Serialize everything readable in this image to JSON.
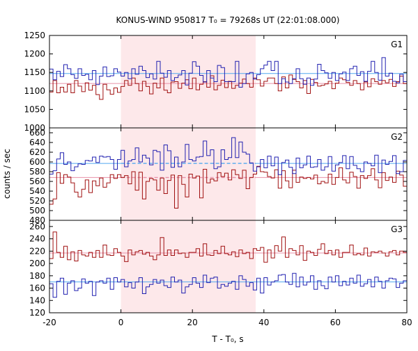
{
  "chart_data": {
    "type": "line",
    "title": "KONUS-WIND 950817 T₀ = 79268s UT (22:01:08.000)",
    "xlabel": "T - T₀, s",
    "ylabel": "counts / sec",
    "xlim": [
      -20,
      80
    ],
    "x_ticks": [
      "-20",
      "0",
      "20",
      "40",
      "60",
      "80"
    ],
    "x_tick_values": [
      -20,
      0,
      20,
      40,
      60,
      80
    ],
    "highlight_interval": [
      0,
      37.7
    ],
    "colors": {
      "red_series": "#a01010",
      "blue_series": "#2020b0",
      "red_background": "#e890a8",
      "blue_background": "#50a8f0",
      "highlight": "#fde8ea"
    },
    "panels": [
      {
        "label": "G1",
        "ylim": [
          1000,
          1250
        ],
        "y_ticks": [
          1000,
          1050,
          1100,
          1150,
          1200,
          1250
        ],
        "red_background_level": 1120,
        "blue_background_level": 1147,
        "red_background_dashed_in_interval": false,
        "blue_background_dashed_in_interval": false,
        "red_values": [
          1097,
          1128,
          1095,
          1110,
          1097,
          1118,
          1095,
          1128,
          1113,
          1098,
          1122,
          1102,
          1115,
          1090,
          1077,
          1118,
          1103,
          1091,
          1108,
          1096,
          1112,
          1128,
          1115,
          1135,
          1120,
          1100,
          1126,
          1112,
          1092,
          1121,
          1108,
          1135,
          1102,
          1095,
          1124,
          1125,
          1107,
          1121,
          1130,
          1106,
          1135,
          1103,
          1118,
          1125,
          1110,
          1141,
          1103,
          1115,
          1129,
          1109,
          1126,
          1107,
          1115,
          1121,
          1132,
          1120,
          1110,
          1135,
          1130,
          1113,
          1126,
          1135,
          1135,
          1120,
          1100,
          1138,
          1108,
          1143,
          1131,
          1125,
          1108,
          1128,
          1093,
          1131,
          1123,
          1113,
          1115,
          1119,
          1126,
          1106,
          1121,
          1135,
          1130,
          1123,
          1115,
          1128,
          1120,
          1103,
          1124,
          1111,
          1133,
          1125,
          1118,
          1128,
          1122,
          1131,
          1112,
          1125,
          1140,
          1120
        ],
        "blue_values": [
          1159,
          1130,
          1153,
          1139,
          1171,
          1160,
          1144,
          1134,
          1160,
          1142,
          1145,
          1130,
          1155,
          1117,
          1140,
          1165,
          1139,
          1141,
          1160,
          1151,
          1140,
          1150,
          1133,
          1160,
          1145,
          1167,
          1155,
          1136,
          1146,
          1132,
          1180,
          1148,
          1137,
          1155,
          1128,
          1136,
          1143,
          1155,
          1116,
          1148,
          1179,
          1167,
          1142,
          1124,
          1155,
          1135,
          1125,
          1169,
          1163,
          1125,
          1125,
          1125,
          1180,
          1110,
          1120,
          1146,
          1150,
          1132,
          1144,
          1160,
          1170,
          1180,
          1155,
          1180,
          1120,
          1133,
          1124,
          1120,
          1133,
          1160,
          1133,
          1118,
          1135,
          1115,
          1132,
          1172,
          1155,
          1149,
          1134,
          1150,
          1128,
          1146,
          1151,
          1128,
          1160,
          1167,
          1142,
          1152,
          1126,
          1153,
          1180,
          1150,
          1129,
          1190,
          1140,
          1148,
          1126,
          1122,
          1145,
          1125
        ]
      },
      {
        "label": "G2",
        "ylim": [
          480,
          670
        ],
        "y_ticks": [
          480,
          500,
          520,
          540,
          560,
          580,
          600,
          620,
          640,
          660
        ],
        "red_background_level": 568,
        "blue_background_level": 597,
        "red_background_dashed_in_interval": true,
        "blue_background_dashed_in_interval": true,
        "red_values": [
          513,
          524,
          578,
          556,
          574,
          569,
          557,
          538,
          528,
          544,
          563,
          537,
          561,
          551,
          567,
          548,
          557,
          574,
          566,
          574,
          568,
          572,
          555,
          580,
          542,
          579,
          524,
          560,
          566,
          563,
          542,
          567,
          535,
          562,
          573,
          505,
          572,
          554,
          528,
          575,
          567,
          571,
          526,
          585,
          557,
          565,
          561,
          578,
          570,
          577,
          563,
          584,
          574,
          566,
          583,
          545,
          568,
          575,
          591,
          580,
          579,
          570,
          567,
          584,
          546,
          582,
          561,
          547,
          583,
          558,
          569,
          566,
          568,
          565,
          573,
          555,
          560,
          557,
          575,
          554,
          568,
          588,
          563,
          557,
          579,
          570,
          546,
          572,
          566,
          572,
          586,
          563,
          547,
          578,
          562,
          569,
          558,
          581,
          573,
          550
        ],
        "blue_values": [
          575,
          582,
          606,
          619,
          595,
          600,
          582,
          590,
          596,
          595,
          603,
          602,
          610,
          599,
          612,
          610,
          611,
          605,
          585,
          605,
          624,
          590,
          602,
          605,
          629,
          600,
          614,
          608,
          594,
          624,
          621,
          583,
          635,
          623,
          589,
          610,
          590,
          600,
          636,
          605,
          602,
          610,
          611,
          643,
          613,
          625,
          586,
          590,
          625,
          605,
          609,
          650,
          609,
          641,
          620,
          616,
          598,
          581,
          590,
          605,
          588,
          612,
          592,
          610,
          574,
          599,
          604,
          589,
          576,
          608,
          588,
          594,
          612,
          589,
          590,
          605,
          583,
          590,
          611,
          581,
          594,
          599,
          613,
          586,
          611,
          593,
          586,
          580,
          600,
          597,
          592,
          614,
          578,
          604,
          595,
          601,
          613,
          576,
          580,
          603
        ]
      },
      {
        "label": "G3",
        "ylim": [
          120,
          270
        ],
        "y_ticks": [
          120,
          140,
          160,
          180,
          200,
          220,
          240,
          260
        ],
        "red_background_level": 217,
        "blue_background_level": 170,
        "red_background_dashed_in_interval": false,
        "blue_background_dashed_in_interval": false,
        "red_values": [
          208,
          251,
          218,
          210,
          228,
          206,
          219,
          204,
          221,
          214,
          212,
          218,
          210,
          221,
          210,
          230,
          214,
          213,
          224,
          218,
          212,
          203,
          222,
          214,
          219,
          221,
          215,
          218,
          212,
          206,
          214,
          242,
          213,
          222,
          213,
          222,
          216,
          217,
          210,
          218,
          218,
          224,
          212,
          232,
          214,
          213,
          221,
          216,
          228,
          216,
          214,
          219,
          211,
          222,
          216,
          218,
          208,
          224,
          221,
          226,
          202,
          222,
          209,
          229,
          220,
          243,
          210,
          224,
          221,
          214,
          229,
          205,
          220,
          218,
          213,
          223,
          232,
          216,
          221,
          214,
          222,
          210,
          218,
          218,
          230,
          214,
          216,
          214,
          225,
          212,
          219,
          218,
          220,
          217,
          212,
          219,
          221,
          214,
          220,
          218
        ],
        "blue_values": [
          167,
          145,
          171,
          176,
          150,
          168,
          172,
          156,
          160,
          175,
          168,
          171,
          148,
          170,
          172,
          168,
          176,
          158,
          177,
          170,
          174,
          162,
          169,
          160,
          170,
          177,
          151,
          162,
          166,
          174,
          168,
          173,
          164,
          161,
          178,
          170,
          173,
          152,
          162,
          166,
          177,
          168,
          161,
          181,
          169,
          176,
          178,
          160,
          166,
          163,
          168,
          171,
          158,
          180,
          174,
          163,
          169,
          157,
          176,
          152,
          177,
          165,
          170,
          172,
          181,
          182,
          170,
          166,
          184,
          162,
          178,
          165,
          170,
          180,
          158,
          172,
          164,
          159,
          178,
          170,
          180,
          164,
          171,
          165,
          176,
          168,
          181,
          163,
          167,
          174,
          162,
          178,
          171,
          160,
          172,
          176,
          175,
          161,
          168,
          172
        ]
      }
    ]
  }
}
